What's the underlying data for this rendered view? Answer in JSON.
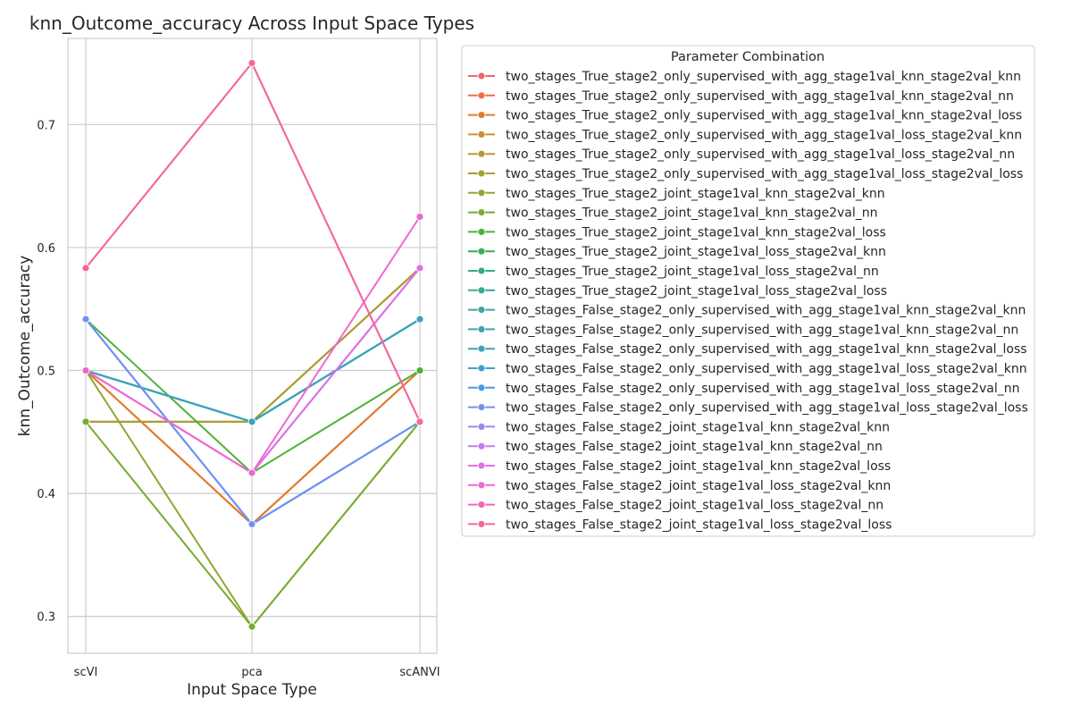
{
  "chart_data": {
    "type": "line",
    "title": "knn_Outcome_accuracy Across Input Space Types",
    "xlabel": "Input Space Type",
    "ylabel": "knn_Outcome_accuracy",
    "categories": [
      "scVI",
      "pca",
      "scANVI"
    ],
    "ylim": [
      0.27,
      0.77
    ],
    "yticks": [
      0.3,
      0.4,
      0.5,
      0.6,
      0.7
    ],
    "grid": true,
    "legend_title": "Parameter Combination",
    "legend_position": "outside-right",
    "series": [
      {
        "name": "two_stages_True_stage2_only_supervised_with_agg_stage1val_knn_stage2val_knn",
        "color": "#f0666a",
        "values": [
          0.5,
          0.375,
          0.5
        ]
      },
      {
        "name": "two_stages_True_stage2_only_supervised_with_agg_stage1val_knn_stage2val_nn",
        "color": "#ee6d41",
        "values": [
          0.5,
          0.375,
          0.5
        ]
      },
      {
        "name": "two_stages_True_stage2_only_supervised_with_agg_stage1val_knn_stage2val_loss",
        "color": "#e07d2c",
        "values": [
          0.5,
          0.375,
          0.5
        ]
      },
      {
        "name": "two_stages_True_stage2_only_supervised_with_agg_stage1val_loss_stage2val_knn",
        "color": "#c99231",
        "values": [
          0.4583,
          0.4583,
          0.5833
        ]
      },
      {
        "name": "two_stages_True_stage2_only_supervised_with_agg_stage1val_loss_stage2val_nn",
        "color": "#b79832",
        "values": [
          0.4583,
          0.4583,
          0.5833
        ]
      },
      {
        "name": "two_stages_True_stage2_only_supervised_with_agg_stage1val_loss_stage2val_loss",
        "color": "#a89d32",
        "values": [
          0.4583,
          0.4583,
          0.5833
        ]
      },
      {
        "name": "two_stages_True_stage2_joint_stage1val_knn_stage2val_knn",
        "color": "#93a532",
        "values": [
          0.5,
          0.2917,
          0.4583
        ]
      },
      {
        "name": "two_stages_True_stage2_joint_stage1val_knn_stage2val_nn",
        "color": "#77ac32",
        "values": [
          0.4583,
          0.2917,
          0.4583
        ]
      },
      {
        "name": "two_stages_True_stage2_joint_stage1val_knn_stage2val_loss",
        "color": "#4cb23a",
        "values": [
          0.5417,
          0.4167,
          0.5
        ]
      },
      {
        "name": "two_stages_True_stage2_joint_stage1val_loss_stage2val_knn",
        "color": "#33b05a",
        "values": [
          0.5,
          0.4583,
          0.5417
        ]
      },
      {
        "name": "two_stages_True_stage2_joint_stage1val_loss_stage2val_nn",
        "color": "#35ad7d",
        "values": [
          0.5,
          0.4583,
          0.5417
        ]
      },
      {
        "name": "two_stages_True_stage2_joint_stage1val_loss_stage2val_loss",
        "color": "#36aa92",
        "values": [
          0.5,
          0.4583,
          0.5417
        ]
      },
      {
        "name": "two_stages_False_stage2_only_supervised_with_agg_stage1val_knn_stage2val_knn",
        "color": "#38a8a1",
        "values": [
          0.5,
          0.4583,
          0.5417
        ]
      },
      {
        "name": "two_stages_False_stage2_only_supervised_with_agg_stage1val_knn_stage2val_nn",
        "color": "#39a6ae",
        "values": [
          0.5,
          0.4583,
          0.5417
        ]
      },
      {
        "name": "two_stages_False_stage2_only_supervised_with_agg_stage1val_knn_stage2val_loss",
        "color": "#3ba3bc",
        "values": [
          0.5,
          0.4583,
          0.5417
        ]
      },
      {
        "name": "two_stages_False_stage2_only_supervised_with_agg_stage1val_loss_stage2val_knn",
        "color": "#3ea0cf",
        "values": [
          0.5417,
          0.375,
          0.4583
        ]
      },
      {
        "name": "two_stages_False_stage2_only_supervised_with_agg_stage1val_loss_stage2val_nn",
        "color": "#4b9be5",
        "values": [
          0.5417,
          0.375,
          0.4583
        ]
      },
      {
        "name": "two_stages_False_stage2_only_supervised_with_agg_stage1val_loss_stage2val_loss",
        "color": "#7391f4",
        "values": [
          0.5417,
          0.375,
          0.4583
        ]
      },
      {
        "name": "two_stages_False_stage2_joint_stage1val_knn_stage2val_knn",
        "color": "#9d86f2",
        "values": [
          0.5,
          0.4167,
          0.5833
        ]
      },
      {
        "name": "two_stages_False_stage2_joint_stage1val_knn_stage2val_nn",
        "color": "#c47aee",
        "values": [
          0.5,
          0.4167,
          0.5833
        ]
      },
      {
        "name": "two_stages_False_stage2_joint_stage1val_knn_stage2val_loss",
        "color": "#e270e6",
        "values": [
          0.5,
          0.4167,
          0.5833
        ]
      },
      {
        "name": "two_stages_False_stage2_joint_stage1val_loss_stage2val_knn",
        "color": "#f068cf",
        "values": [
          0.5,
          0.4167,
          0.625
        ]
      },
      {
        "name": "two_stages_False_stage2_joint_stage1val_loss_stage2val_nn",
        "color": "#f267b4",
        "values": [
          0.5833,
          0.75,
          0.4583
        ]
      },
      {
        "name": "two_stages_False_stage2_joint_stage1val_loss_stage2val_loss",
        "color": "#f3689a",
        "values": [
          0.5833,
          0.75,
          0.4583
        ]
      }
    ]
  }
}
